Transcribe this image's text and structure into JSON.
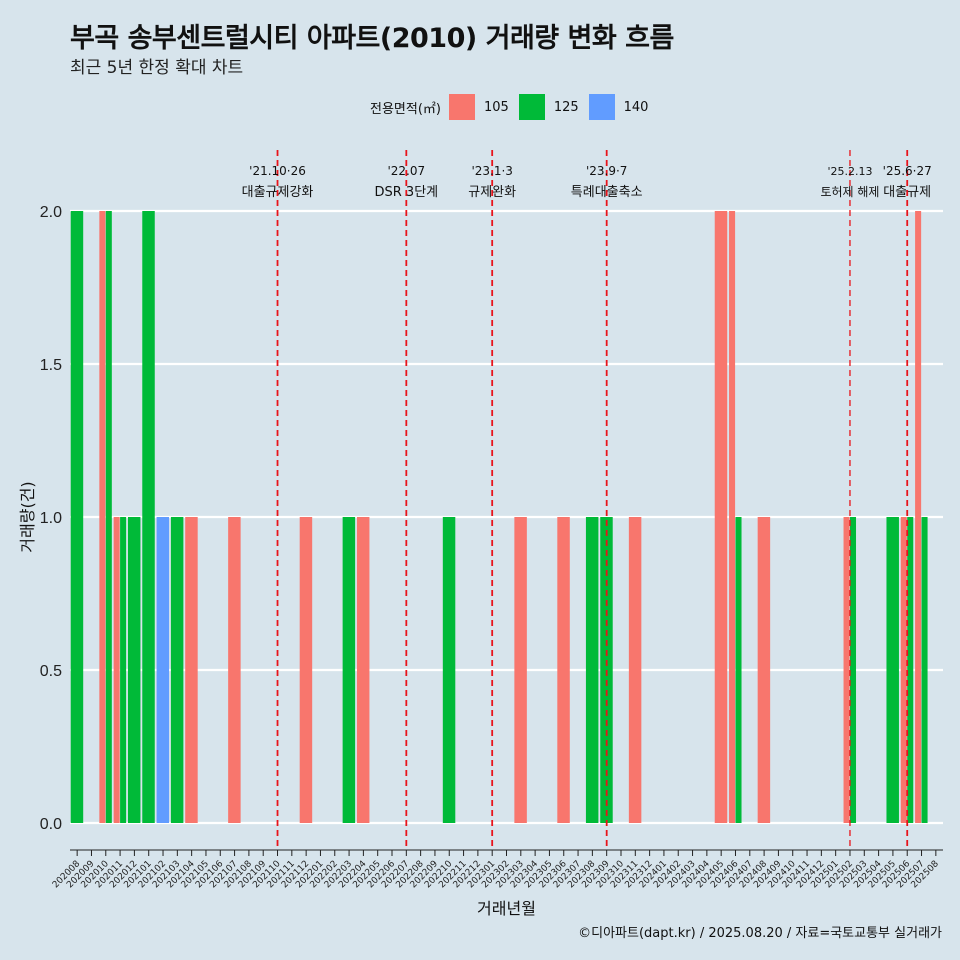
{
  "header": {
    "title": "부곡 송부센트럴시티 아파트(2010) 거래량 변화 흐름",
    "subtitle": "최근 5년 한정 확대 차트"
  },
  "legend": {
    "title": "전용면적(㎡)",
    "items": [
      {
        "label": "105",
        "color": "#f8766d"
      },
      {
        "label": "125",
        "color": "#00ba38"
      },
      {
        "label": "140",
        "color": "#619cff"
      }
    ]
  },
  "footer": {
    "credit": "©디아파트(dapt.kr) / 2025.08.20 / 자료=국토교통부 실거래가"
  },
  "chart_data": {
    "type": "bar",
    "xlabel": "거래년월",
    "ylabel": "거래량(건)",
    "ylim": [
      0,
      2
    ],
    "yticks": [
      "0.0",
      "0.5",
      "1.0",
      "1.5",
      "2.0"
    ],
    "categories": [
      "202008",
      "202009",
      "202010",
      "202011",
      "202012",
      "202101",
      "202102",
      "202103",
      "202104",
      "202105",
      "202106",
      "202107",
      "202108",
      "202109",
      "202110",
      "202111",
      "202112",
      "202201",
      "202202",
      "202203",
      "202204",
      "202205",
      "202206",
      "202207",
      "202208",
      "202209",
      "202210",
      "202211",
      "202212",
      "202301",
      "202302",
      "202303",
      "202304",
      "202305",
      "202306",
      "202307",
      "202308",
      "202309",
      "202310",
      "202311",
      "202312",
      "202401",
      "202402",
      "202403",
      "202404",
      "202405",
      "202406",
      "202407",
      "202408",
      "202409",
      "202410",
      "202411",
      "202412",
      "202501",
      "202502",
      "202503",
      "202504",
      "202505",
      "202506",
      "202507",
      "202508"
    ],
    "series": [
      {
        "name": "105",
        "points": [
          {
            "x": "202010",
            "y": 2
          },
          {
            "x": "202011",
            "y": 1
          },
          {
            "x": "202104",
            "y": 1
          },
          {
            "x": "202107",
            "y": 1
          },
          {
            "x": "202112",
            "y": 1
          },
          {
            "x": "202204",
            "y": 1
          },
          {
            "x": "202303",
            "y": 1
          },
          {
            "x": "202306",
            "y": 1
          },
          {
            "x": "202311",
            "y": 1
          },
          {
            "x": "202405",
            "y": 2
          },
          {
            "x": "202406",
            "y": 2
          },
          {
            "x": "202408",
            "y": 1
          },
          {
            "x": "202502",
            "y": 1
          },
          {
            "x": "202506",
            "y": 1
          },
          {
            "x": "202507",
            "y": 2
          }
        ]
      },
      {
        "name": "125",
        "points": [
          {
            "x": "202008",
            "y": 2
          },
          {
            "x": "202010",
            "y": 2
          },
          {
            "x": "202011",
            "y": 1
          },
          {
            "x": "202012",
            "y": 1
          },
          {
            "x": "202101",
            "y": 2
          },
          {
            "x": "202103",
            "y": 1
          },
          {
            "x": "202203",
            "y": 1
          },
          {
            "x": "202210",
            "y": 1
          },
          {
            "x": "202308",
            "y": 1
          },
          {
            "x": "202309",
            "y": 1
          },
          {
            "x": "202406",
            "y": 1
          },
          {
            "x": "202502",
            "y": 1
          },
          {
            "x": "202505",
            "y": 1
          },
          {
            "x": "202506",
            "y": 1
          },
          {
            "x": "202507",
            "y": 1
          }
        ]
      },
      {
        "name": "140",
        "points": [
          {
            "x": "202102",
            "y": 1
          }
        ]
      }
    ],
    "events": [
      {
        "x": "202110",
        "offset": 0.0,
        "date": "'21.10·26",
        "label": "대출규제강화",
        "small": false
      },
      {
        "x": "202207",
        "offset": 0.0,
        "date": "'22.07",
        "label": "DSR 3단계",
        "small": false
      },
      {
        "x": "202301",
        "offset": 0.0,
        "date": "'23.1·3",
        "label": "규제완화",
        "small": false
      },
      {
        "x": "202309",
        "offset": 0.0,
        "date": "'23.9·7",
        "label": "특례대출축소",
        "small": false
      },
      {
        "x": "202502",
        "offset": 0.0,
        "date": "'25.2.13",
        "label": "토허제 해제",
        "small": true
      },
      {
        "x": "202506",
        "offset": 0.0,
        "date": "'25.6·27",
        "label": "대출규제",
        "small": false
      }
    ]
  }
}
